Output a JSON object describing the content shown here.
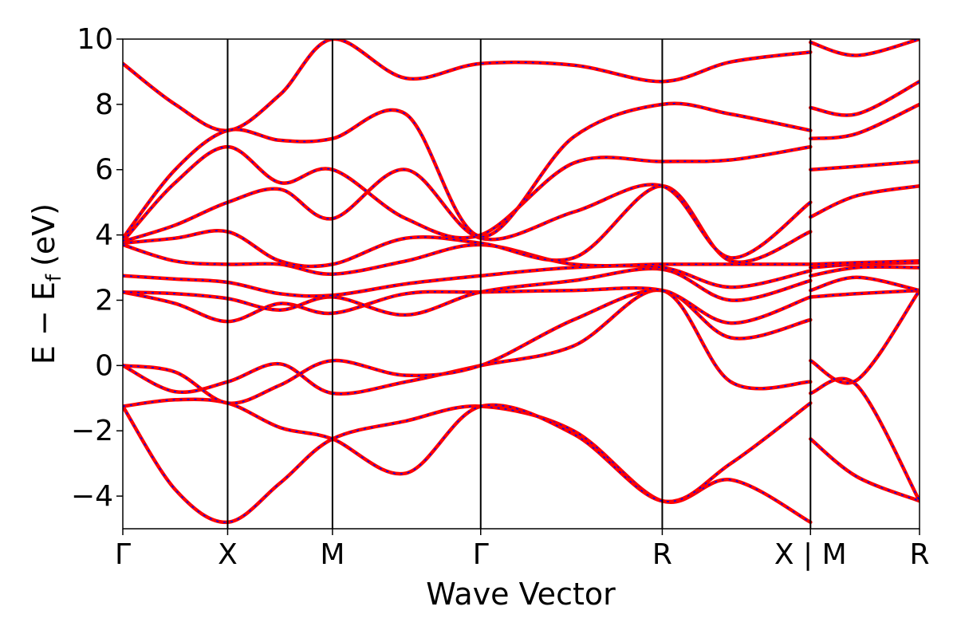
{
  "chart_data": {
    "type": "line",
    "xlabel": "Wave Vector",
    "ylabel": "E − E",
    "ylabel_subscript": "f",
    "ylabel_unit": "(eV)",
    "ylim": [
      -5,
      10
    ],
    "xlim": [
      0,
      7.6
    ],
    "grid": false,
    "yticks": [
      -4,
      -2,
      0,
      2,
      4,
      6,
      8,
      10
    ],
    "ytick_labels": [
      "−4",
      "−2",
      "0",
      "2",
      "4",
      "6",
      "8",
      "10"
    ],
    "high_symmetry_points": [
      {
        "label": "Γ",
        "x": 0
      },
      {
        "label": "X",
        "x": 1
      },
      {
        "label": "M",
        "x": 2
      },
      {
        "label": "Γ",
        "x": 3.414
      },
      {
        "label": "R",
        "x": 5.146
      },
      {
        "label": "X | M",
        "x": 6.56
      },
      {
        "label": "R",
        "x": 7.6
      }
    ],
    "band_color": "#ff0000",
    "overlay_color": "#0000ff",
    "series": [
      {
        "x": [
          0,
          0.5,
          1,
          1.5,
          2,
          2.7,
          3.414,
          4.3,
          5.146,
          5.8,
          6.56,
          6.56,
          7.0,
          7.6
        ],
        "values": [
          -1.25,
          -3.8,
          -4.8,
          -3.6,
          -2.25,
          -1.7,
          -1.25,
          -2.0,
          -4.15,
          -3.5,
          -4.8,
          -2.25,
          -3.4,
          -4.15
        ]
      },
      {
        "x": [
          0,
          0.5,
          1,
          1.5,
          2,
          2.7,
          3.414,
          4.3,
          5.146,
          5.8,
          6.56,
          6.56,
          7.0,
          7.6
        ],
        "values": [
          -1.25,
          -1.05,
          -1.15,
          -1.9,
          -2.25,
          -3.3,
          -1.25,
          -2.1,
          -4.15,
          -3.0,
          -1.15,
          -0.85,
          -0.6,
          -4.15
        ]
      },
      {
        "x": [
          0,
          0.5,
          1,
          1.5,
          2,
          2.7,
          3.414,
          4.3,
          5.146,
          5.8,
          6.56,
          6.56,
          7.0,
          7.6
        ],
        "values": [
          0,
          -0.8,
          -0.5,
          0.05,
          -0.85,
          -0.5,
          0,
          0.6,
          2.3,
          -0.5,
          -0.5,
          0.15,
          -0.45,
          2.3
        ]
      },
      {
        "x": [
          0,
          0.5,
          1,
          1.5,
          2,
          2.7,
          3.414,
          4.3,
          5.146,
          5.8,
          6.56,
          6.56,
          7.0,
          7.6
        ],
        "values": [
          0,
          -0.2,
          -1.15,
          -0.6,
          0.15,
          -0.3,
          0,
          1.4,
          2.3,
          0.85,
          1.4,
          2.1,
          2.2,
          2.3
        ]
      },
      {
        "x": [
          0,
          0.5,
          1,
          1.5,
          2,
          2.7,
          3.414,
          4.3,
          5.146,
          5.8,
          6.56,
          6.56,
          7.0,
          7.6
        ],
        "values": [
          2.25,
          1.9,
          1.35,
          1.9,
          1.6,
          2.2,
          2.25,
          2.3,
          2.3,
          1.3,
          2.1,
          2.3,
          2.7,
          2.3
        ]
      },
      {
        "x": [
          0,
          0.5,
          1,
          1.5,
          2,
          2.7,
          3.414,
          4.3,
          5.146,
          5.8,
          6.56,
          6.56,
          7.0,
          7.6
        ],
        "values": [
          2.25,
          2.2,
          2.05,
          1.7,
          2.1,
          1.55,
          2.25,
          2.6,
          2.95,
          2.0,
          2.6,
          2.75,
          3.0,
          3.0
        ]
      },
      {
        "x": [
          0,
          0.5,
          1,
          1.5,
          2,
          2.7,
          3.414,
          4.3,
          5.146,
          5.8,
          6.56,
          6.56,
          7.0,
          7.6
        ],
        "values": [
          2.75,
          2.65,
          2.55,
          2.2,
          2.15,
          2.5,
          2.75,
          3.0,
          3.0,
          2.4,
          2.9,
          3.0,
          3.1,
          3.15
        ]
      },
      {
        "x": [
          0,
          0.5,
          1,
          1.5,
          2,
          2.7,
          3.414,
          4.3,
          5.146,
          5.8,
          6.56,
          6.56,
          7.0,
          7.6
        ],
        "values": [
          3.7,
          3.2,
          3.1,
          3.1,
          2.8,
          3.2,
          3.7,
          3.1,
          3.1,
          3.1,
          3.1,
          3.1,
          3.15,
          3.2
        ]
      },
      {
        "x": [
          0,
          0.5,
          1,
          1.5,
          2,
          2.7,
          3.414,
          4.3,
          5.146,
          5.8,
          6.56,
          6.56,
          7.0,
          7.6
        ],
        "values": [
          3.75,
          3.9,
          4.1,
          3.2,
          3.1,
          3.9,
          3.75,
          3.3,
          5.5,
          3.2,
          4.1,
          4.55,
          5.2,
          5.5
        ]
      },
      {
        "x": [
          0,
          0.5,
          1,
          1.5,
          2,
          2.7,
          3.414,
          4.3,
          5.146,
          5.8,
          6.56,
          6.56,
          7.0,
          7.6
        ],
        "values": [
          3.8,
          4.3,
          5.0,
          5.4,
          4.5,
          6.0,
          3.9,
          4.7,
          5.5,
          3.3,
          5.0,
          6.0,
          6.1,
          6.25
        ]
      },
      {
        "x": [
          0,
          0.5,
          1,
          1.5,
          2,
          2.7,
          3.414,
          4.3,
          5.146,
          5.8,
          6.56,
          6.56,
          7.0,
          7.6
        ],
        "values": [
          3.8,
          5.6,
          6.7,
          5.6,
          6.0,
          4.5,
          4.0,
          6.2,
          6.25,
          6.3,
          6.7,
          6.95,
          7.1,
          8.0
        ]
      },
      {
        "x": [
          0,
          0.5,
          1,
          1.5,
          2,
          2.7,
          3.414,
          4.3,
          5.146,
          5.8,
          6.56,
          6.56,
          7.0,
          7.6
        ],
        "values": [
          3.9,
          6.0,
          7.2,
          6.9,
          6.95,
          7.7,
          3.95,
          7.0,
          8.0,
          7.7,
          7.2,
          7.9,
          7.7,
          8.7
        ]
      },
      {
        "x": [
          0,
          0.5,
          1,
          1.5,
          2,
          2.7,
          3.414,
          4.3,
          5.146,
          5.8,
          6.56,
          6.56,
          7.0,
          7.6
        ],
        "values": [
          9.25,
          8.0,
          7.2,
          8.3,
          10.0,
          8.8,
          9.25,
          9.2,
          8.7,
          9.3,
          9.6,
          9.9,
          9.5,
          10.0
        ]
      }
    ]
  }
}
